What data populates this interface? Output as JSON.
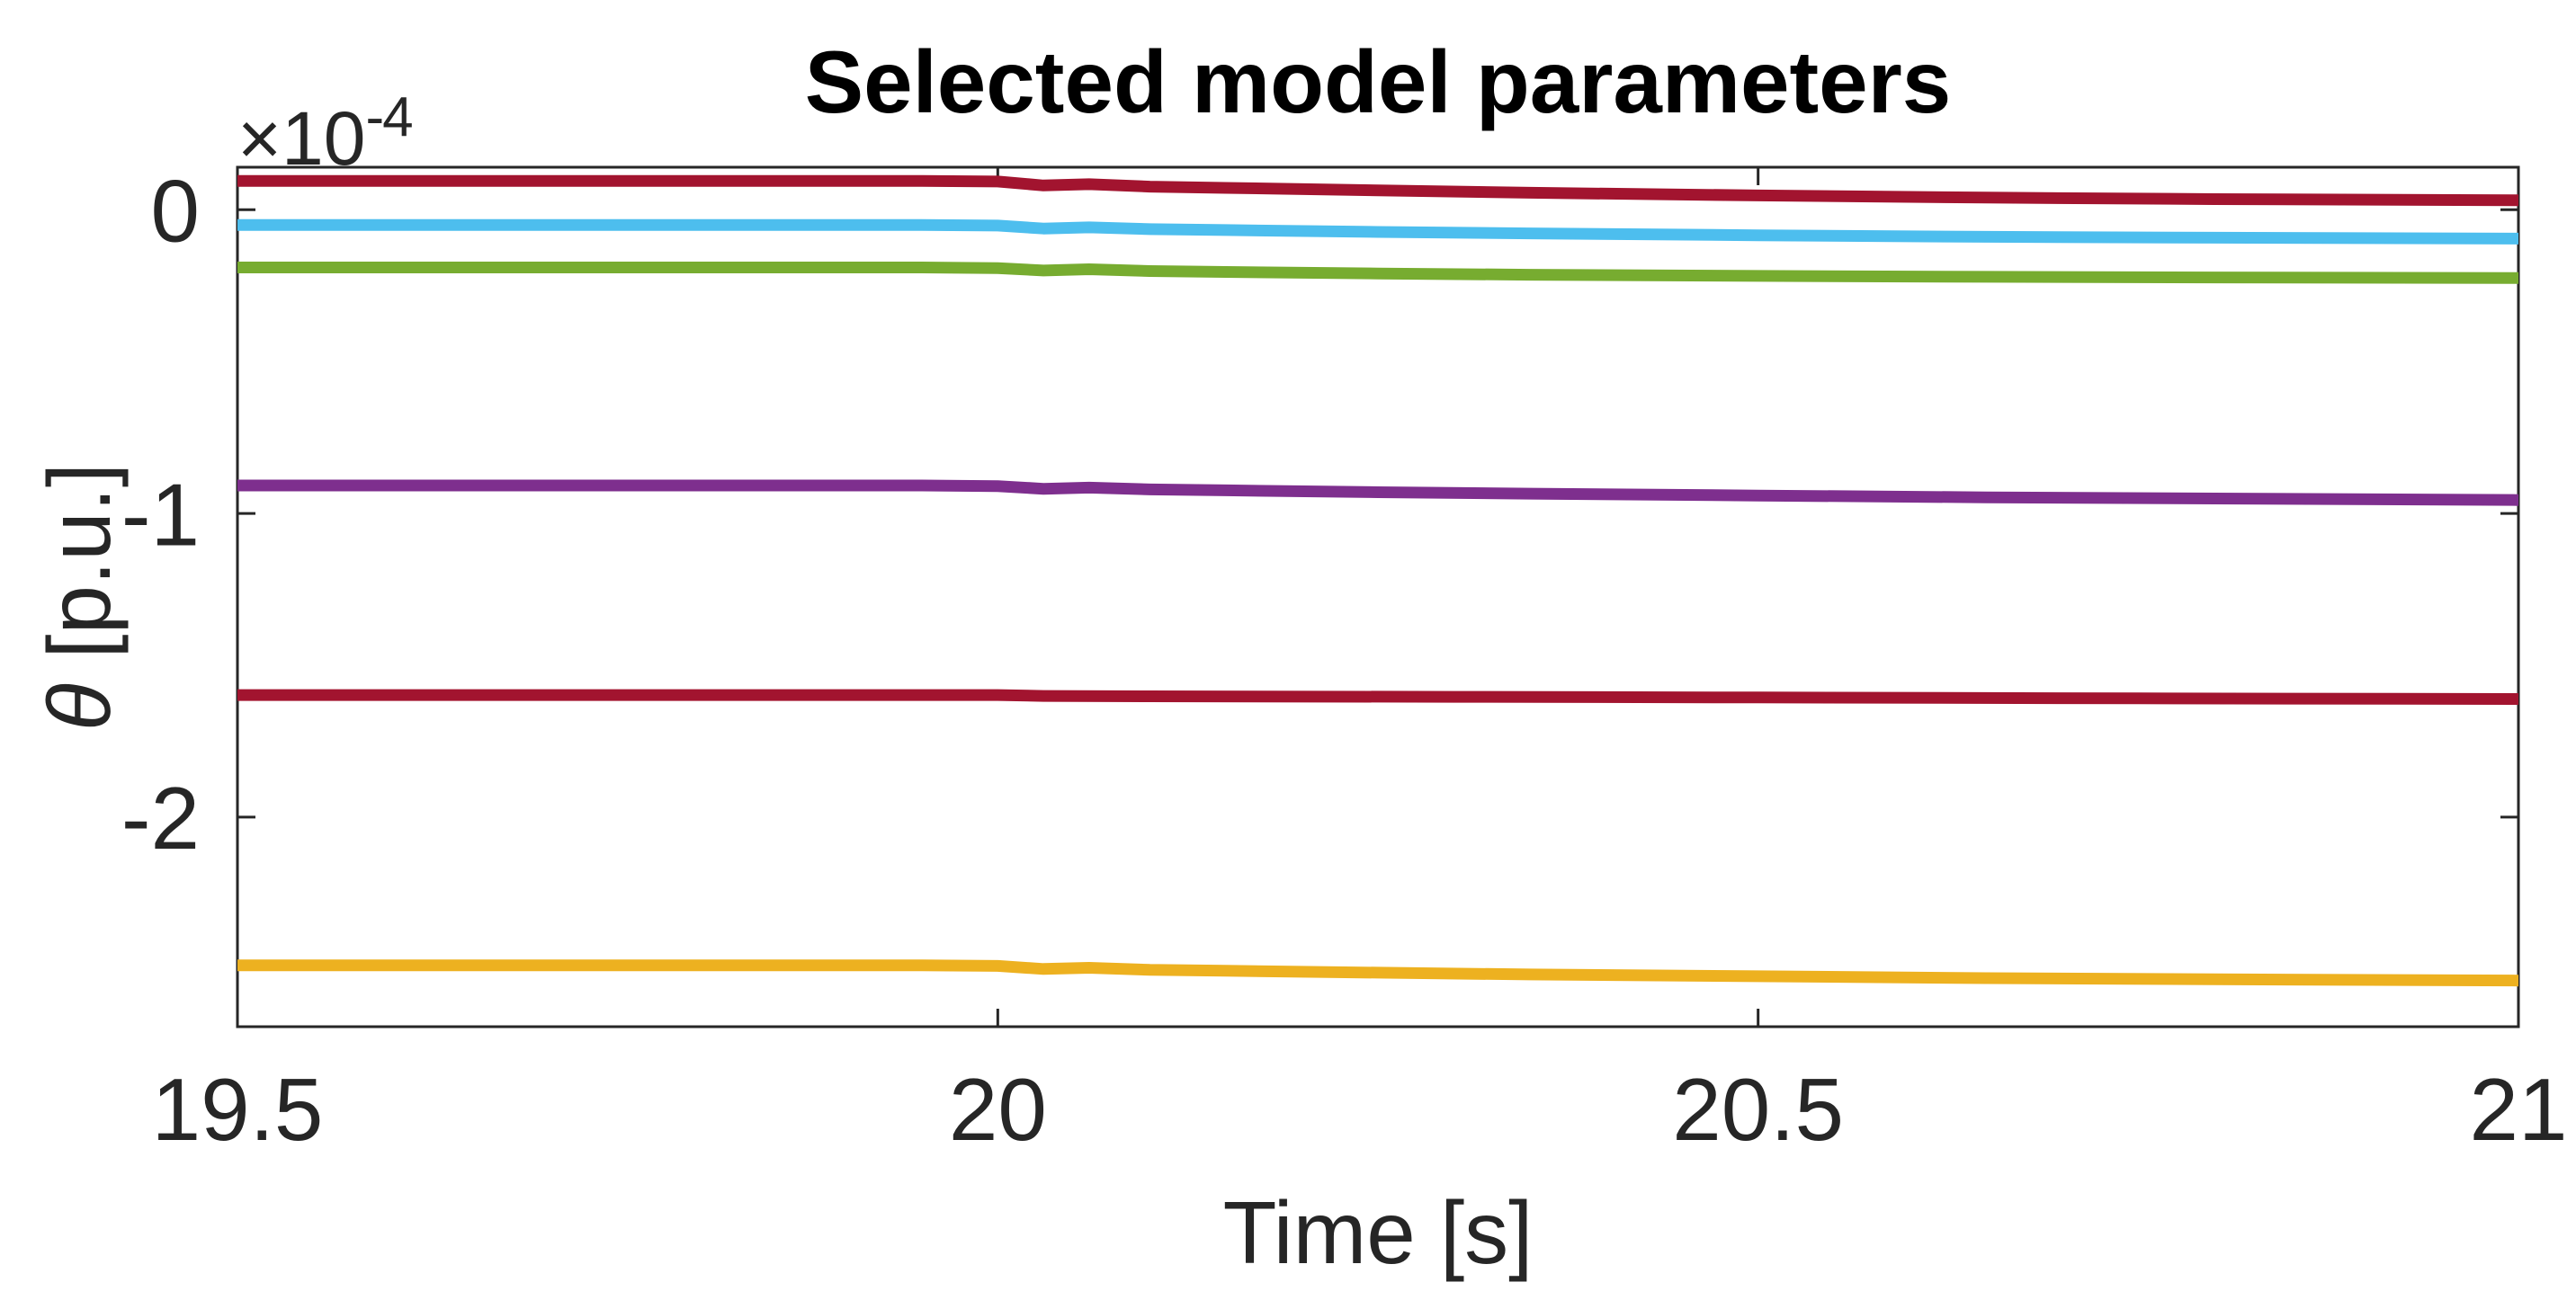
{
  "figure": {
    "background": "#ffffff",
    "title_color": "#000000",
    "axis_color": "#262626"
  },
  "chart_data": {
    "type": "line",
    "title": "Selected model parameters",
    "xlabel": "Time [s]",
    "ylabel": "θ [p.u.]",
    "ylabel_symbol": "θ",
    "ylabel_rest": " [p.u.]",
    "y_multiplier_base": "×10",
    "y_multiplier_exponent": "-4",
    "value_scale": "1e-4",
    "xlim": [
      19.5,
      21
    ],
    "ylim_scaled": [
      -2.69,
      0.14
    ],
    "grid": false,
    "legend": false,
    "x_ticks": [
      {
        "v": 19.5,
        "label": "19.5"
      },
      {
        "v": 20,
        "label": "20"
      },
      {
        "v": 20.5,
        "label": "20.5"
      },
      {
        "v": 21,
        "label": "21"
      }
    ],
    "y_ticks": [
      {
        "v": 0,
        "label": "0"
      },
      {
        "v": -1,
        "label": "-1"
      },
      {
        "v": -2,
        "label": "-2"
      }
    ],
    "series": [
      {
        "name": "dark-red-upper",
        "color": "#A2142F",
        "points": [
          [
            19.5,
            0.095
          ],
          [
            19.95,
            0.095
          ],
          [
            20.0,
            0.093
          ],
          [
            20.03,
            0.08
          ],
          [
            20.06,
            0.084
          ],
          [
            20.1,
            0.076
          ],
          [
            20.15,
            0.072
          ],
          [
            20.25,
            0.064
          ],
          [
            20.35,
            0.056
          ],
          [
            20.5,
            0.047
          ],
          [
            20.65,
            0.04
          ],
          [
            20.8,
            0.035
          ],
          [
            21,
            0.031
          ]
        ]
      },
      {
        "name": "light-blue",
        "color": "#4DBEEE",
        "points": [
          [
            19.5,
            -0.05
          ],
          [
            19.95,
            -0.05
          ],
          [
            20.0,
            -0.052
          ],
          [
            20.03,
            -0.062
          ],
          [
            20.06,
            -0.058
          ],
          [
            20.1,
            -0.064
          ],
          [
            20.15,
            -0.067
          ],
          [
            20.25,
            -0.073
          ],
          [
            20.35,
            -0.078
          ],
          [
            20.5,
            -0.084
          ],
          [
            20.65,
            -0.089
          ],
          [
            20.8,
            -0.092
          ],
          [
            21,
            -0.095
          ]
        ]
      },
      {
        "name": "green",
        "color": "#77AC30",
        "points": [
          [
            19.5,
            -0.19
          ],
          [
            19.95,
            -0.19
          ],
          [
            20.0,
            -0.192
          ],
          [
            20.03,
            -0.2
          ],
          [
            20.06,
            -0.196
          ],
          [
            20.1,
            -0.202
          ],
          [
            20.15,
            -0.205
          ],
          [
            20.25,
            -0.21
          ],
          [
            20.35,
            -0.214
          ],
          [
            20.5,
            -0.218
          ],
          [
            20.65,
            -0.221
          ],
          [
            20.8,
            -0.223
          ],
          [
            21,
            -0.225
          ]
        ]
      },
      {
        "name": "purple",
        "color": "#7E2F8E",
        "points": [
          [
            19.5,
            -0.908
          ],
          [
            19.95,
            -0.908
          ],
          [
            20.0,
            -0.91
          ],
          [
            20.03,
            -0.919
          ],
          [
            20.06,
            -0.915
          ],
          [
            20.1,
            -0.921
          ],
          [
            20.15,
            -0.924
          ],
          [
            20.25,
            -0.93
          ],
          [
            20.35,
            -0.935
          ],
          [
            20.5,
            -0.941
          ],
          [
            20.65,
            -0.947
          ],
          [
            20.8,
            -0.951
          ],
          [
            21,
            -0.956
          ]
        ]
      },
      {
        "name": "dark-red-lower",
        "color": "#A2142F",
        "points": [
          [
            19.5,
            -1.598
          ],
          [
            20.0,
            -1.598
          ],
          [
            20.03,
            -1.601
          ],
          [
            20.1,
            -1.602
          ],
          [
            20.3,
            -1.604
          ],
          [
            20.5,
            -1.606
          ],
          [
            20.75,
            -1.609
          ],
          [
            21,
            -1.611
          ]
        ]
      },
      {
        "name": "yellow",
        "color": "#EDB120",
        "points": [
          [
            19.5,
            -2.488
          ],
          [
            19.95,
            -2.488
          ],
          [
            20.0,
            -2.49
          ],
          [
            20.03,
            -2.5
          ],
          [
            20.06,
            -2.496
          ],
          [
            20.1,
            -2.503
          ],
          [
            20.15,
            -2.506
          ],
          [
            20.25,
            -2.512
          ],
          [
            20.35,
            -2.518
          ],
          [
            20.5,
            -2.524
          ],
          [
            20.65,
            -2.53
          ],
          [
            20.8,
            -2.534
          ],
          [
            21,
            -2.538
          ]
        ]
      }
    ]
  }
}
